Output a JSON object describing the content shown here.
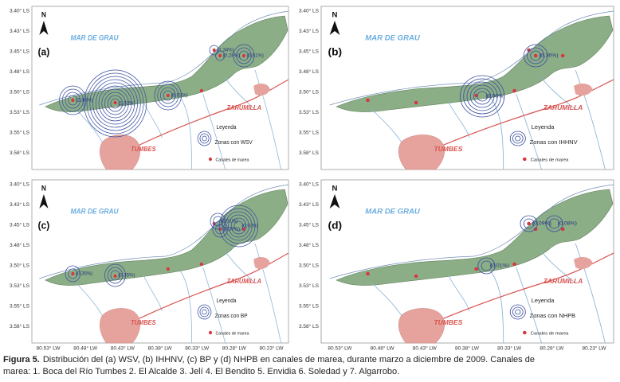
{
  "y_axis_labels": [
    "3.40° LS",
    "3.43° LS",
    "3.45° LS",
    "3.48° LS",
    "3.50° LS",
    "3.53° LS",
    "3.55° LS",
    "3.58° LS"
  ],
  "x_axis_labels": [
    "80.53° LW",
    "80.48° LW",
    "80.43° LW",
    "80.38° LW",
    "80.33° LW",
    "80.28° LW",
    "80.23° LW"
  ],
  "panels": [
    {
      "label": "(a)",
      "sea": "MAR DE GRAU",
      "river": "ZARUMILLA",
      "city": "TUMBES",
      "legend_title": "Leyenda",
      "legend_zone": "Zonas con WSV",
      "legend_channels": "Canales de marea",
      "percentages": [
        "(1,34%)",
        "(0,28%)",
        "(0,61%)",
        "(2,84%)",
        "(1,02%)",
        "(0,03%)"
      ]
    },
    {
      "label": "(b)",
      "sea": "MAR DE GRAU",
      "river": "ZARUMILLA",
      "city": "TUMBES",
      "legend_title": "Leyenda",
      "legend_zone": "Zonas con IHHNV",
      "legend_channels": "Canales de marea",
      "percentages": [
        "(0,36%)",
        "(0,06%)"
      ]
    },
    {
      "label": "(c)",
      "sea": "MAR DE GRAU",
      "river": "ZARUMILLA",
      "city": "TUMBES",
      "legend_title": "Leyenda",
      "legend_zone": "Zonas con BP",
      "legend_channels": "Canales de marea",
      "percentages": [
        "(0,51%)",
        "(0,38%)",
        "(0,93%)",
        "(0,35%)",
        "(0,35%)"
      ]
    },
    {
      "label": "(d)",
      "sea": "MAR DE GRAU",
      "river": "ZARUMILLA",
      "city": "TUMBES",
      "legend_title": "Leyenda",
      "legend_zone": "Zonas con NHPB",
      "legend_channels": "Canales de marea",
      "percentages": [
        "(0,09%)",
        "(0,08%)",
        "(0,01%)"
      ]
    }
  ],
  "caption": {
    "label": "Figura 5.",
    "line1": "Distribución del (a) WSV, (b) IHHNV, (c) BP y (d) NHPB en canales de marea, durante marzo a diciembre de 2009. Canales de",
    "line2": "marea: 1. Boca del Río Tumbes 2. El Alcalde 3. Jelí 4. El Bendito 5. Envidia 6. Soledad y 7. Algarrobo."
  }
}
